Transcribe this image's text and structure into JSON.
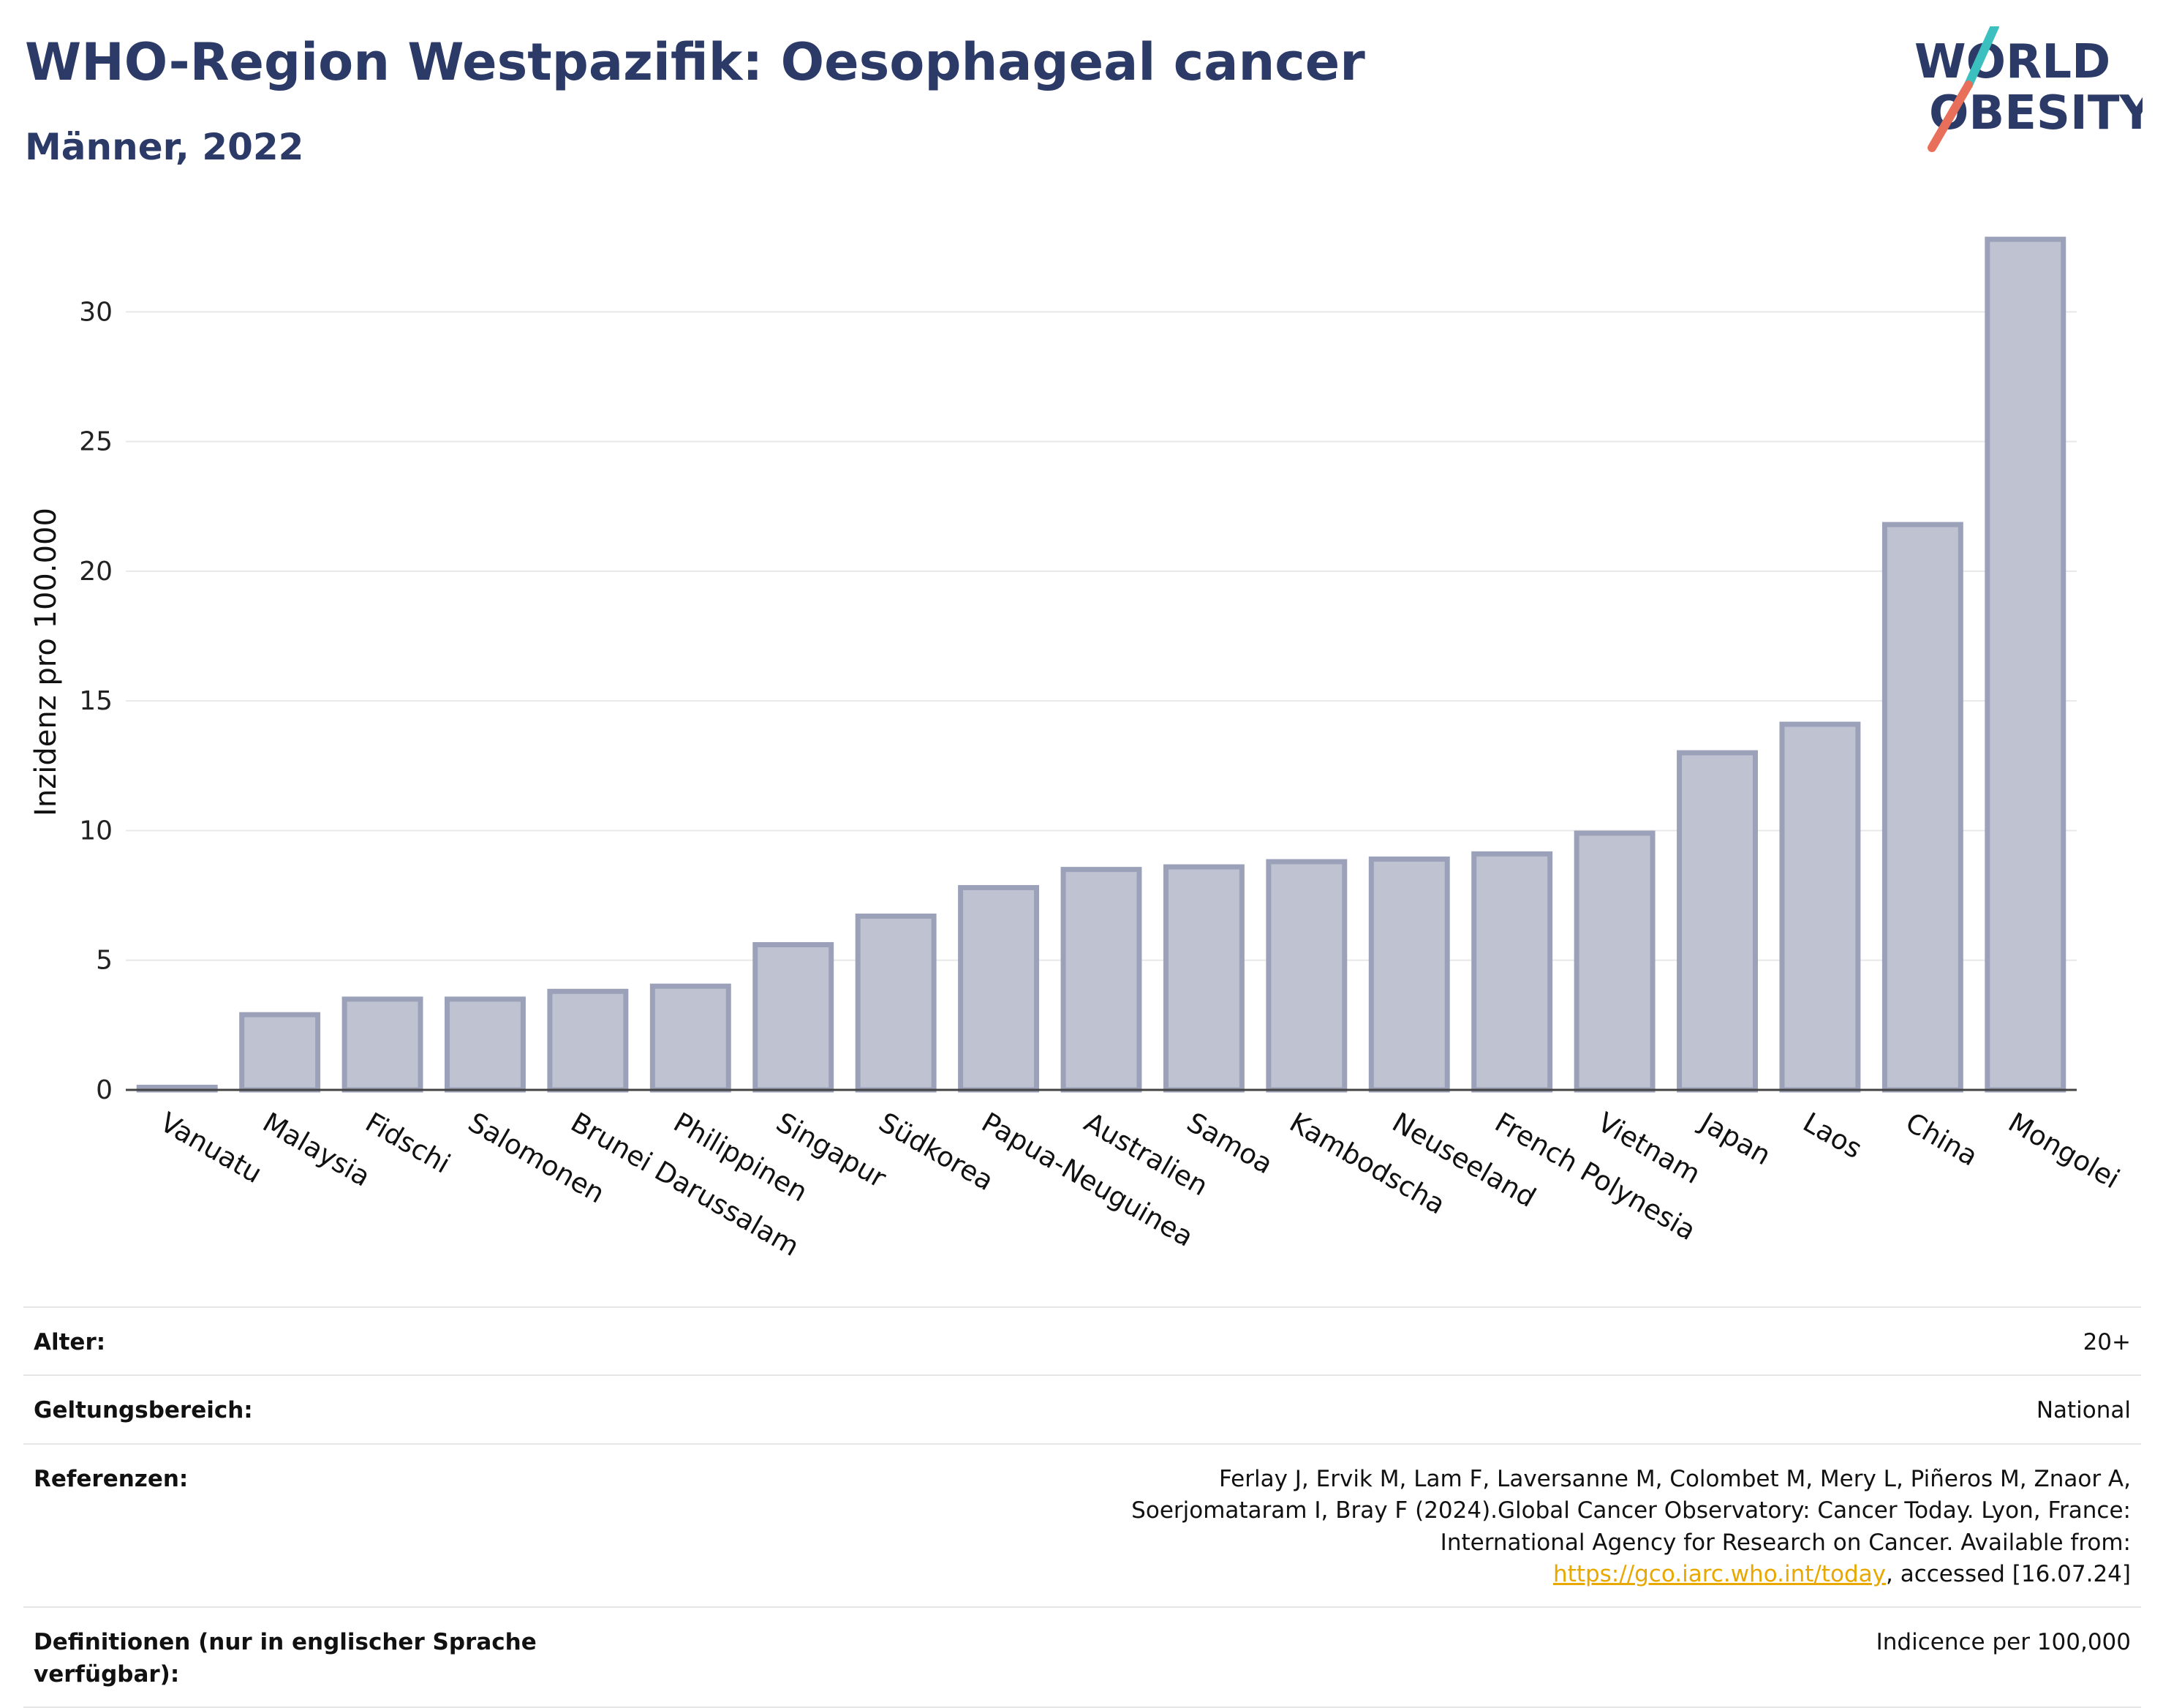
{
  "header": {
    "title": "WHO-Region Westpazifik: Oesophageal cancer",
    "subtitle": "Männer, 2022"
  },
  "logo": {
    "line1": "WORLD",
    "line2": "OBESITY",
    "text_color": "#2b3a67",
    "slash_color_top": "#3bbfbf",
    "slash_color_bottom": "#e8705a"
  },
  "chart_data": {
    "type": "bar",
    "title": "",
    "xlabel": "",
    "ylabel": "Inzidenz pro 100.000",
    "ylim": [
      0,
      33
    ],
    "yticks": [
      0,
      5,
      10,
      15,
      20,
      25,
      30
    ],
    "grid": true,
    "bar_fill": "#bfc3d1",
    "bar_stroke": "#9ba1b8",
    "categories": [
      "Vanuatu",
      "Malaysia",
      "Fidschi",
      "Salomonen",
      "Brunei Darussalam",
      "Philippinen",
      "Singapur",
      "Südkorea",
      "Papua-Neuguinea",
      "Australien",
      "Samoa",
      "Kambodscha",
      "Neuseeland",
      "French Polynesia",
      "Vietnam",
      "Japan",
      "Laos",
      "China",
      "Mongolei"
    ],
    "values": [
      0.1,
      2.9,
      3.5,
      3.5,
      3.8,
      4.0,
      5.6,
      6.7,
      7.8,
      8.5,
      8.6,
      8.8,
      8.9,
      9.1,
      9.9,
      13.0,
      14.1,
      21.8,
      32.8
    ]
  },
  "meta": {
    "rows": [
      {
        "key": "Alter:",
        "value": "20+"
      },
      {
        "key": "Geltungsbereich:",
        "value": "National"
      },
      {
        "key": "Referenzen:",
        "value_before": "Ferlay J, Ervik M, Lam F, Laversanne M, Colombet M, Mery L, Piñeros M, Znaor A, Soerjomataram I, Bray F (2024).Global Cancer Observatory: Cancer Today. Lyon, France: International Agency for Research on Cancer. Available from: ",
        "link": "https://gco.iarc.who.int/today",
        "value_after": ", accessed [16.07.24]"
      },
      {
        "key": "Definitionen (nur in englischer Sprache verfügbar):",
        "value": "Indicence per 100,000"
      }
    ]
  }
}
